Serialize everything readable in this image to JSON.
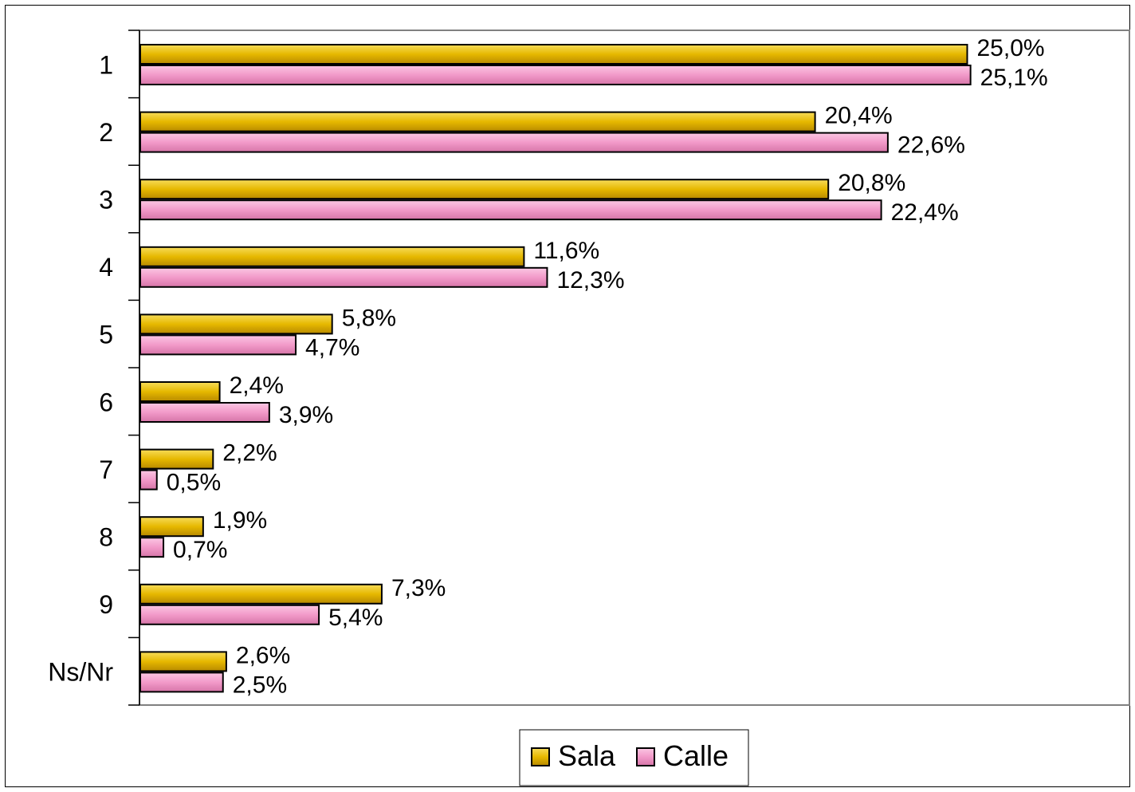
{
  "chart_data": {
    "type": "bar",
    "orientation": "horizontal",
    "categories": [
      "1",
      "2",
      "3",
      "4",
      "5",
      "6",
      "7",
      "8",
      "9",
      "Ns/Nr"
    ],
    "series": [
      {
        "name": "Sala",
        "color": "#E6B800",
        "values": [
          25.0,
          20.4,
          20.8,
          11.6,
          5.8,
          2.4,
          2.2,
          1.9,
          7.3,
          2.6
        ],
        "labels": [
          "25,0%",
          "20,4%",
          "20,8%",
          "11,6%",
          "5,8%",
          "2,4%",
          "2,2%",
          "1,9%",
          "7,3%",
          "2,6%"
        ]
      },
      {
        "name": "Calle",
        "color": "#F29AC9",
        "values": [
          25.1,
          22.6,
          22.4,
          12.3,
          4.7,
          3.9,
          0.5,
          0.7,
          5.4,
          2.5
        ],
        "labels": [
          "25,1%",
          "22,6%",
          "22,4%",
          "12,3%",
          "4,7%",
          "3,9%",
          "0,5%",
          "0,7%",
          "5,4%",
          "2,5%"
        ]
      }
    ],
    "xlim": [
      0,
      30
    ],
    "grid": false,
    "legend_position": "bottom"
  }
}
